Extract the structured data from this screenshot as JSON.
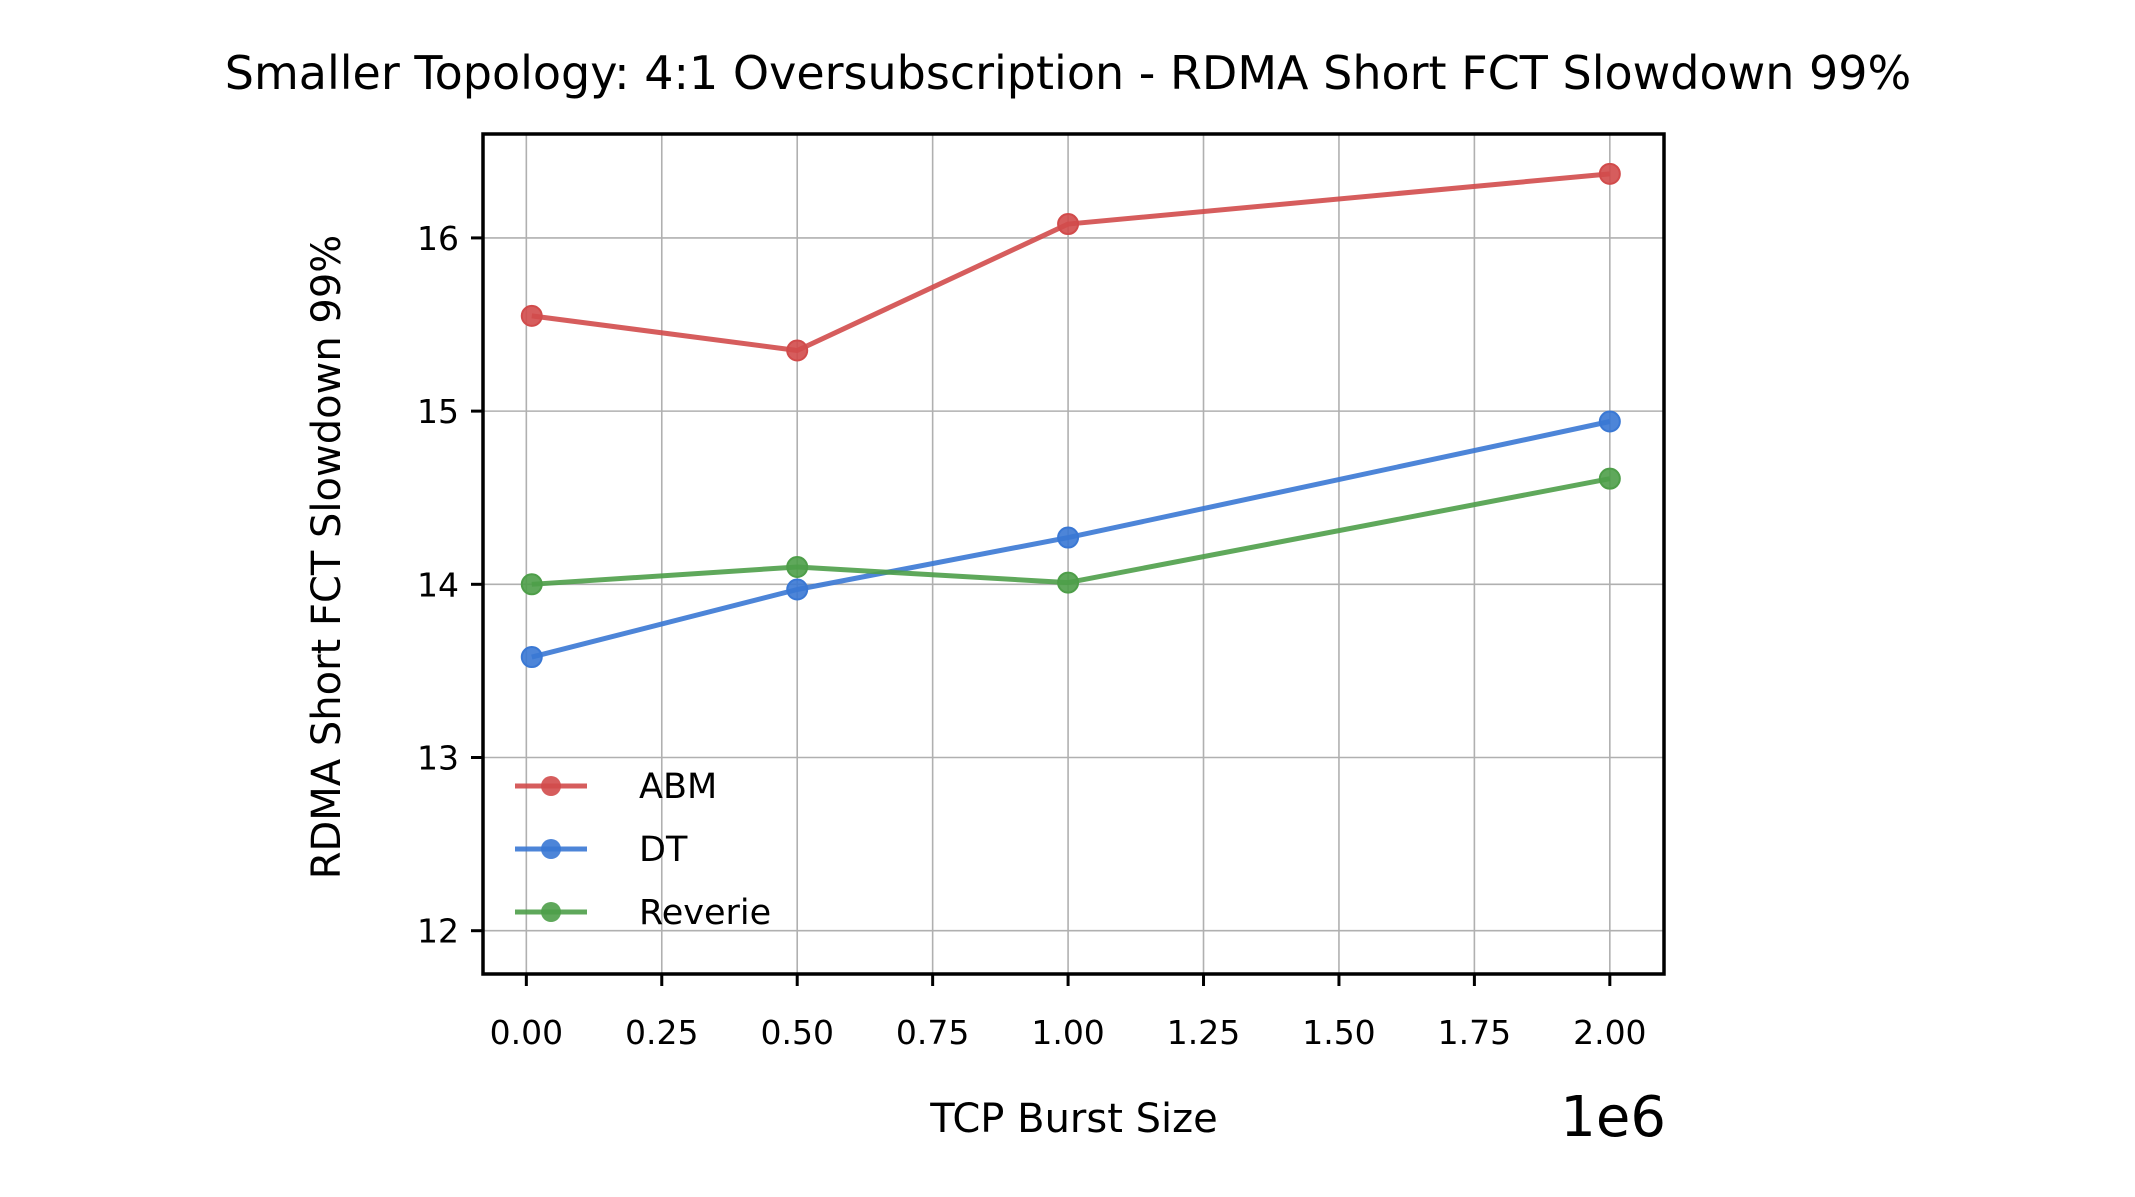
{
  "chart_data": {
    "type": "line",
    "title": "Smaller Topology: 4:1 Oversubscription - RDMA Short FCT Slowdown 99%",
    "xlabel": "TCP Burst Size",
    "ylabel": "RDMA Short FCT Slowdown 99%",
    "x_offset_label": "1e6",
    "x": [
      10000,
      500000,
      1000000,
      2000000
    ],
    "xlim": [
      -80000,
      2100000
    ],
    "ylim": [
      11.75,
      16.6
    ],
    "x_ticks": [
      0,
      0.25,
      0.5,
      0.75,
      1.0,
      1.25,
      1.5,
      1.75,
      2.0
    ],
    "x_tick_labels": [
      "0.00",
      "0.25",
      "0.50",
      "0.75",
      "1.00",
      "1.25",
      "1.50",
      "1.75",
      "2.00"
    ],
    "y_ticks": [
      12,
      13,
      14,
      15,
      16
    ],
    "y_tick_labels": [
      "12",
      "13",
      "14",
      "15",
      "16"
    ],
    "grid": true,
    "legend_position": "lower-left",
    "series": [
      {
        "name": "ABM",
        "color": "#d14b4b",
        "values": [
          15.55,
          15.35,
          16.08,
          16.37
        ]
      },
      {
        "name": "DT",
        "color": "#3a78d4",
        "values": [
          13.58,
          13.97,
          14.27,
          14.94
        ]
      },
      {
        "name": "Reverie",
        "color": "#4e9e49",
        "values": [
          14.0,
          14.1,
          14.01,
          14.61
        ]
      }
    ]
  }
}
